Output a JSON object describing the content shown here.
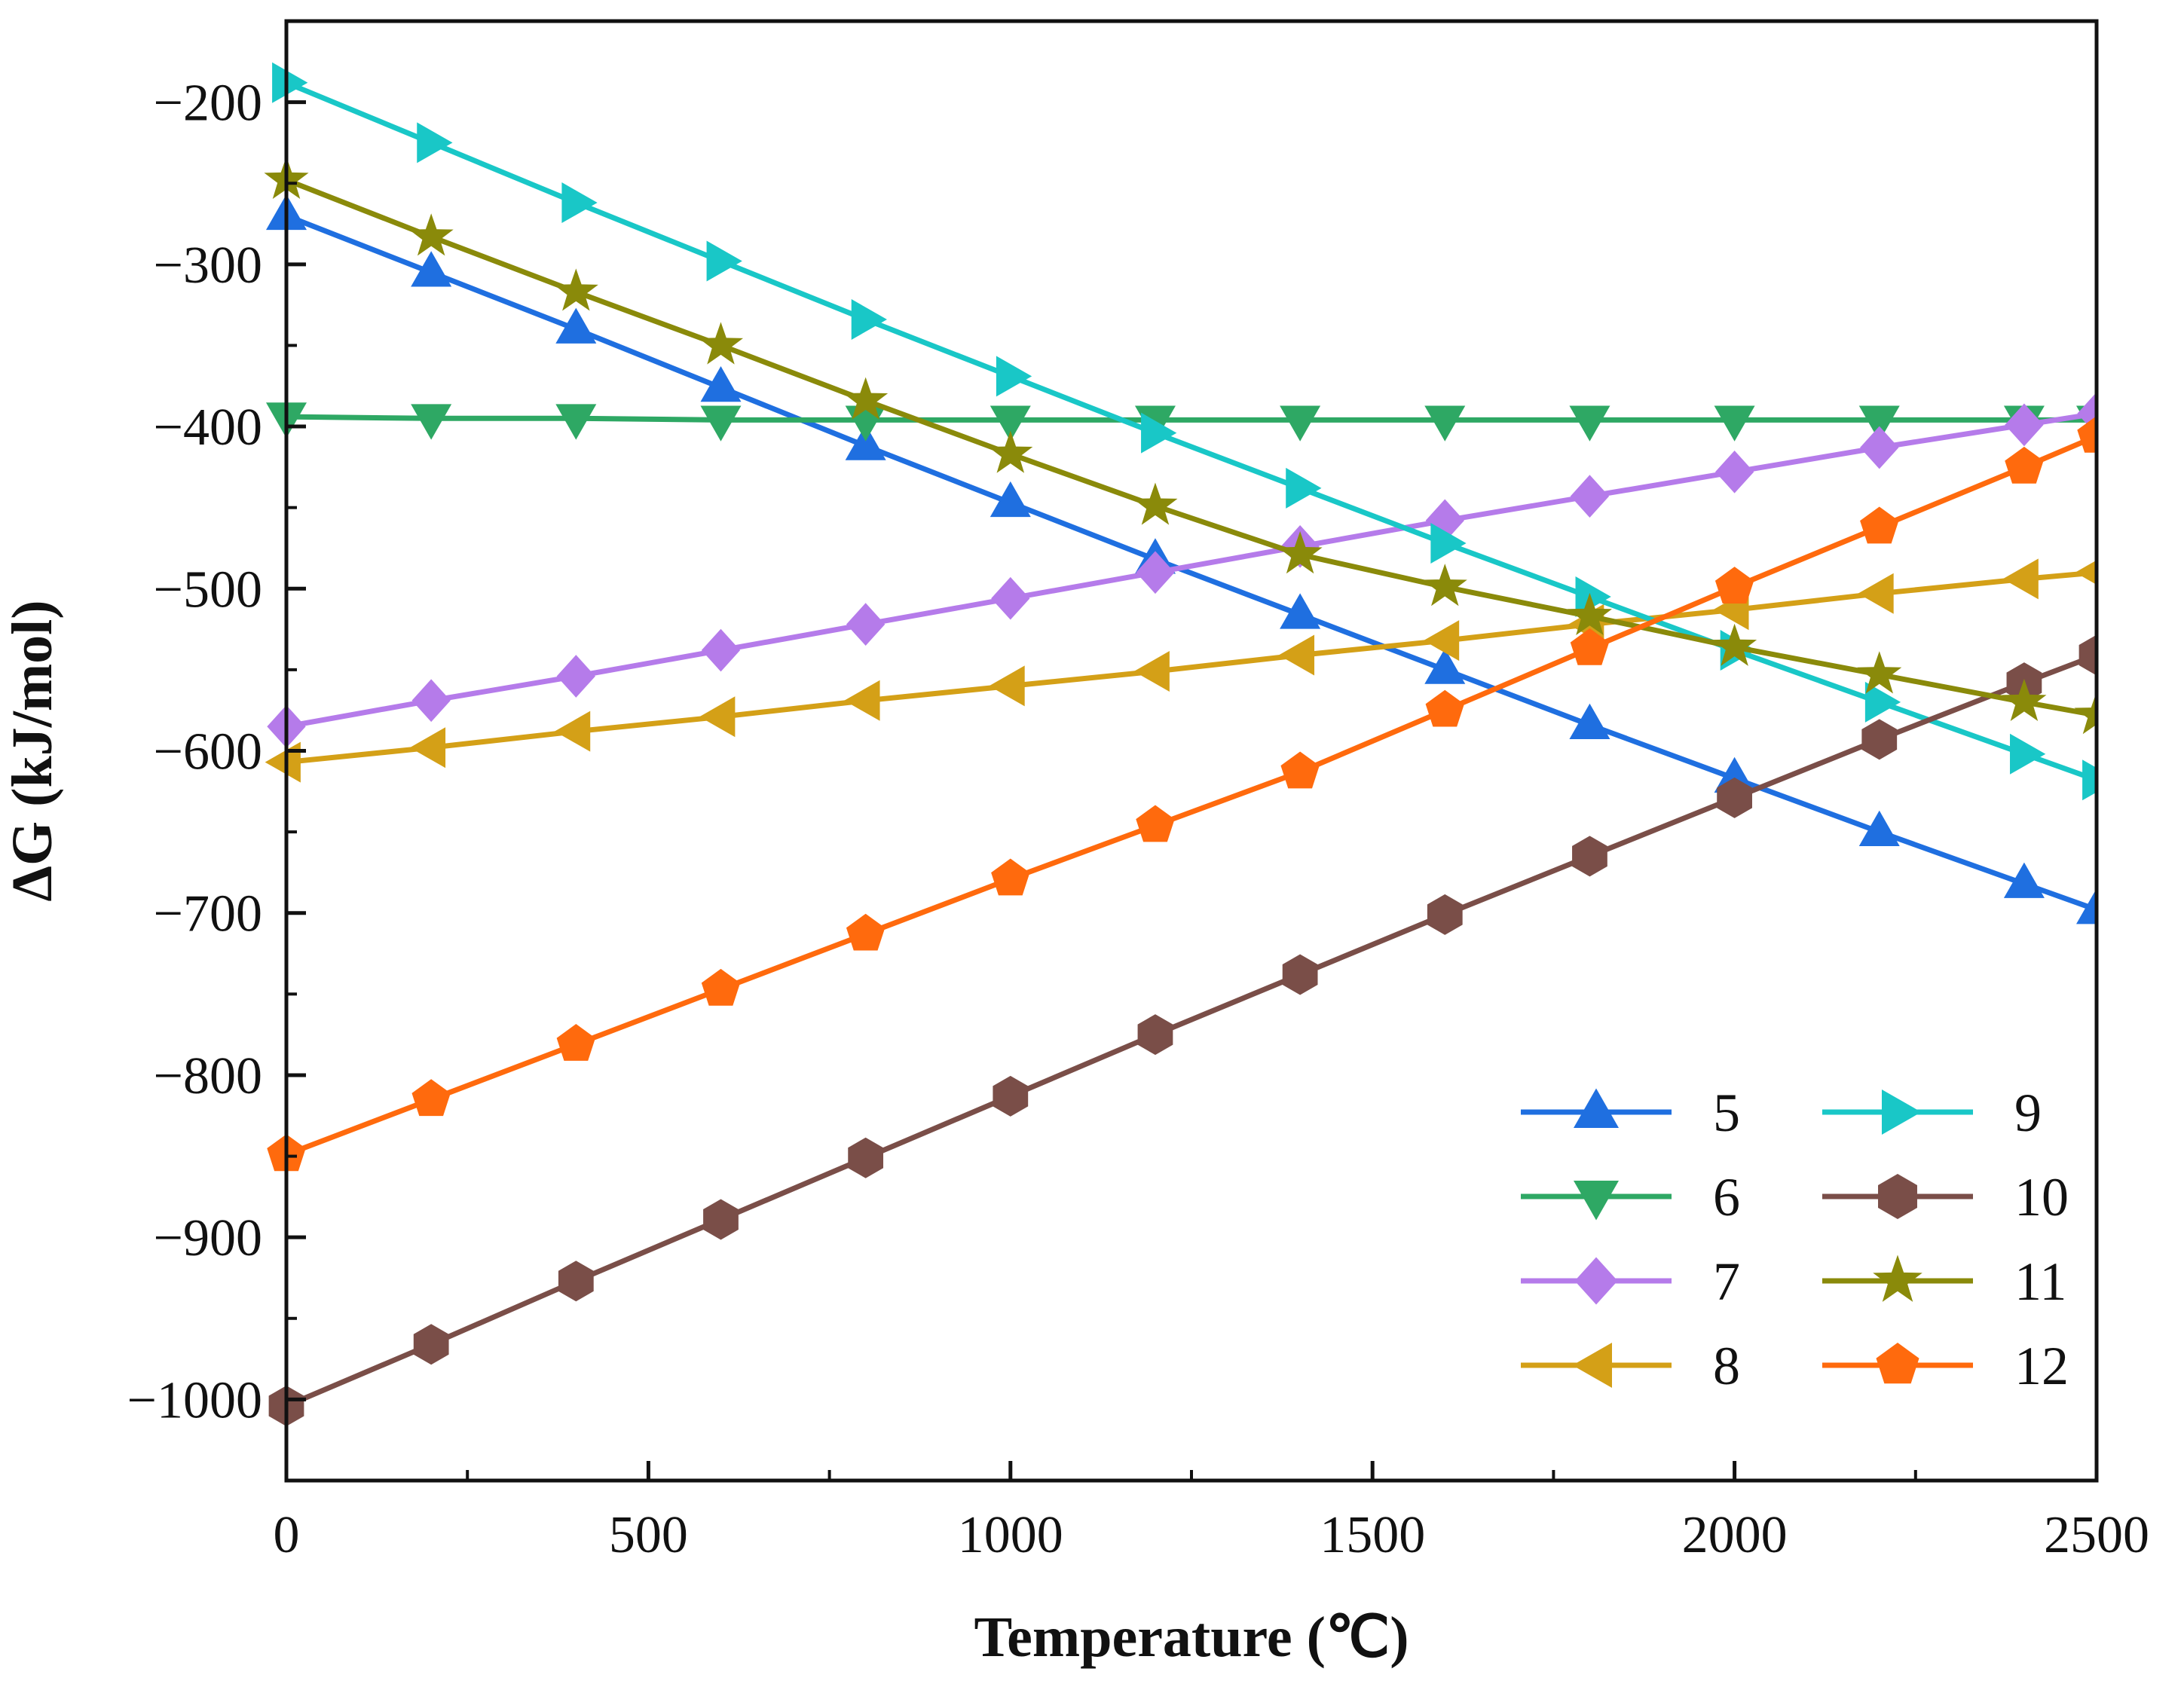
{
  "chart_data": {
    "type": "line",
    "title": "",
    "xlabel": "Temperature (℃)",
    "ylabel": "ΔG (kJ/mol)",
    "xlim": [
      0,
      2500
    ],
    "ylim": [
      -1050,
      -150
    ],
    "xticks": [
      0,
      500,
      1000,
      1500,
      2000,
      2500
    ],
    "xtick_labels": [
      "0",
      "500",
      "1000",
      "1500",
      "2000",
      "2500"
    ],
    "yticks": [
      -1000,
      -900,
      -800,
      -700,
      -600,
      -500,
      -400,
      -300,
      -200
    ],
    "ytick_labels": [
      "−1000",
      "−900",
      "−800",
      "−700",
      "−600",
      "−500",
      "−400",
      "−300",
      "−200"
    ],
    "grid": false,
    "legend_position": "bottom-right",
    "x": [
      0,
      200,
      400,
      600,
      800,
      1000,
      1200,
      1400,
      1600,
      1800,
      2000,
      2200,
      2400,
      2500
    ],
    "series": [
      {
        "name": "5",
        "color": "#1f6fe0",
        "marker": "triangle-up",
        "values": [
          -270,
          -305,
          -340,
          -376,
          -412,
          -447,
          -482,
          -516,
          -550,
          -584,
          -617,
          -650,
          -682,
          -698
        ]
      },
      {
        "name": "6",
        "color": "#2ea864",
        "marker": "triangle-down",
        "values": [
          -394,
          -395,
          -395,
          -396,
          -396,
          -396,
          -396,
          -396,
          -396,
          -396,
          -396,
          -396,
          -396,
          -396
        ]
      },
      {
        "name": "7",
        "color": "#b57bea",
        "marker": "diamond",
        "values": [
          -585,
          -569,
          -554,
          -538,
          -522,
          -506,
          -490,
          -474,
          -458,
          -443,
          -428,
          -413,
          -399,
          -392
        ]
      },
      {
        "name": "8",
        "color": "#d4a017",
        "marker": "triangle-left",
        "values": [
          -607,
          -598,
          -588,
          -579,
          -569,
          -560,
          -551,
          -541,
          -532,
          -522,
          -513,
          -503,
          -494,
          -490
        ]
      },
      {
        "name": "9",
        "color": "#19c7c7",
        "marker": "triangle-right",
        "values": [
          -188,
          -225,
          -262,
          -298,
          -334,
          -369,
          -404,
          -438,
          -472,
          -505,
          -538,
          -570,
          -602,
          -618
        ]
      },
      {
        "name": "10",
        "color": "#7a4e48",
        "marker": "hexagon",
        "values": [
          -1004,
          -966,
          -927,
          -889,
          -851,
          -813,
          -775,
          -738,
          -701,
          -665,
          -629,
          -593,
          -558,
          -541
        ]
      },
      {
        "name": "11",
        "color": "#8a8a0a",
        "marker": "star",
        "values": [
          -248,
          -283,
          -317,
          -350,
          -384,
          -417,
          -449,
          -479,
          -499,
          -517,
          -536,
          -553,
          -570,
          -578
        ]
      },
      {
        "name": "12",
        "color": "#ff6a0d",
        "marker": "pentagon",
        "values": [
          -849,
          -815,
          -781,
          -747,
          -713,
          -679,
          -646,
          -613,
          -575,
          -537,
          -499,
          -462,
          -425,
          -406
        ]
      }
    ]
  }
}
